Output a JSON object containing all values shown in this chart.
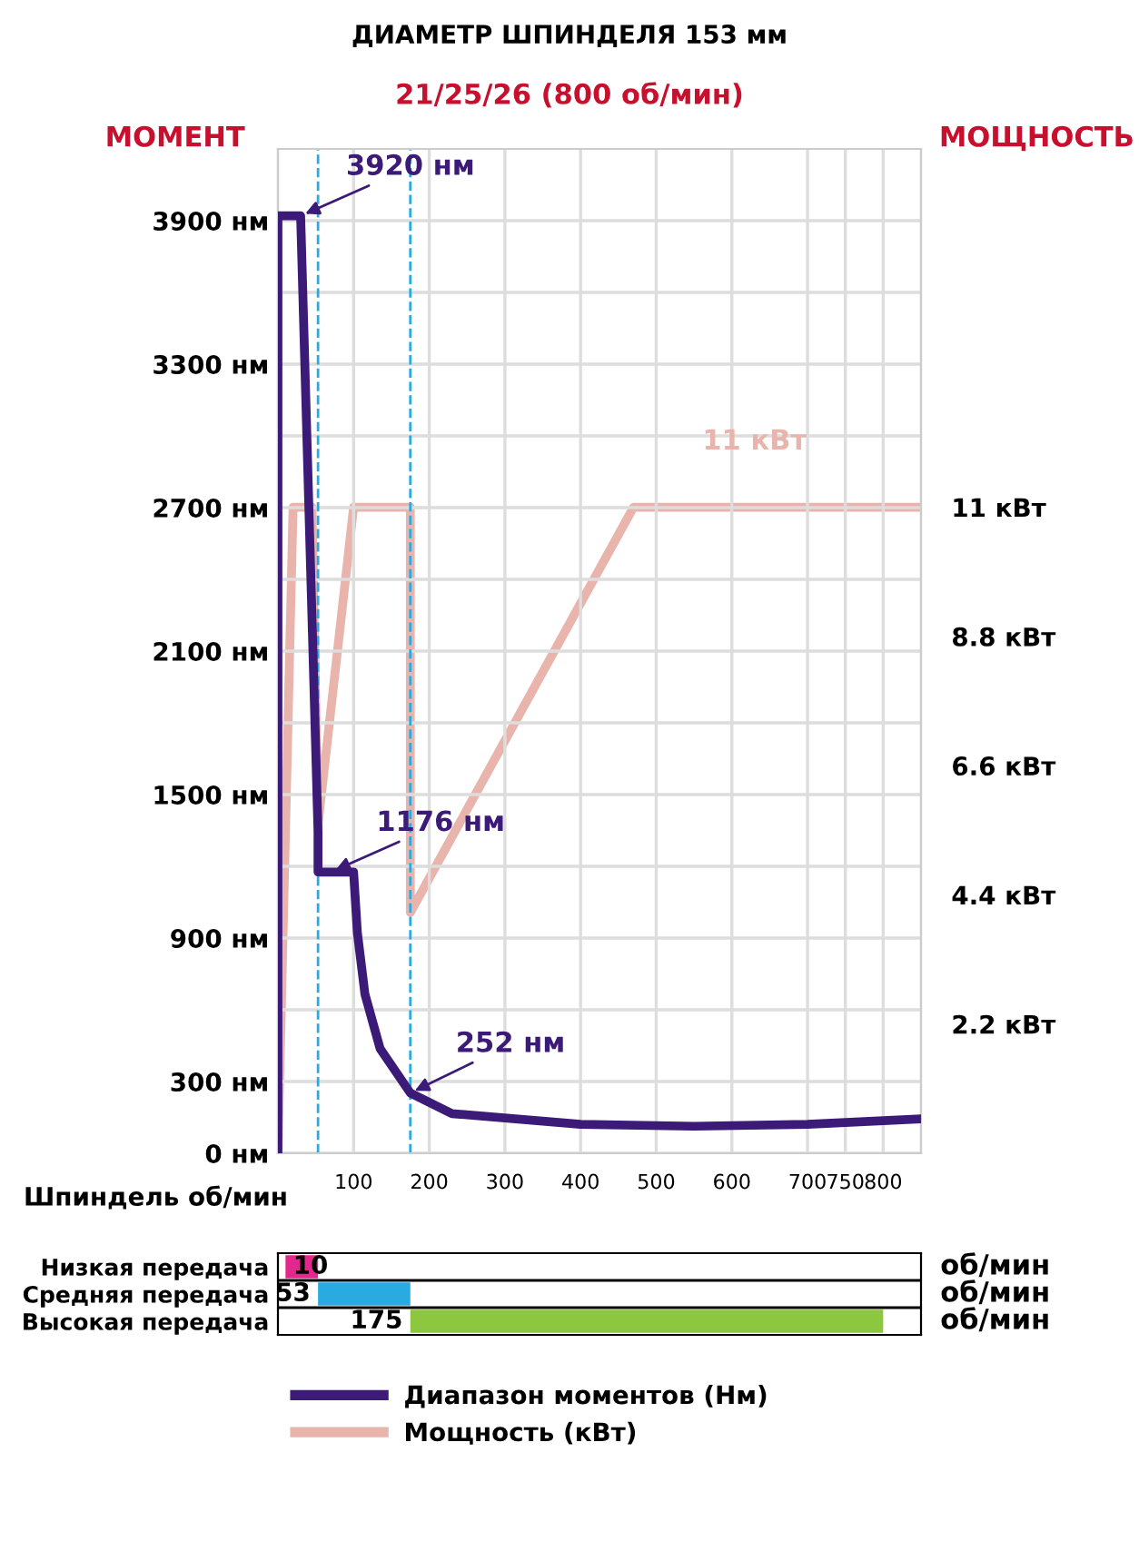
{
  "chart_data": [
    {
      "type": "line",
      "title": "ДИАМЕТР ШПИНДЕЛЯ 153 мм",
      "subtitle": "21/25/26 (800 об/мин)",
      "xlabel": "Шпиндель об/мин",
      "ylabel": "МОМЕНТ",
      "y2label": "МОЩНОСТЬ",
      "series": [
        {
          "name": "Диапазон моментов (Нм)",
          "color": "#3b1a78",
          "x": [
            0,
            0,
            30,
            53,
            53,
            100,
            105,
            115,
            135,
            175,
            230,
            400,
            550,
            700,
            850
          ],
          "values": [
            0,
            3920,
            3920,
            1345,
            1176,
            1176,
            922,
            665,
            438,
            252,
            166,
            121,
            113,
            121,
            144
          ]
        },
        {
          "name": "Мощность (кВт)",
          "color": "#e8b4ab",
          "axis": "y2",
          "x": [
            0,
            20,
            45,
            53,
            100,
            175,
            175,
            470,
            850
          ],
          "values": [
            0,
            11,
            11,
            5.6,
            11,
            11,
            4.1,
            11,
            11
          ]
        }
      ],
      "xlim": [
        0,
        850
      ],
      "xticks": [
        100,
        200,
        300,
        400,
        500,
        600,
        700,
        750,
        800
      ],
      "ylim": [
        0,
        4200
      ],
      "yticks": [
        {
          "value": 0,
          "label": "0 нм"
        },
        {
          "value": 300,
          "label": "300 нм"
        },
        {
          "value": 600,
          "label": null
        },
        {
          "value": 900,
          "label": "900 нм"
        },
        {
          "value": 1200,
          "label": null
        },
        {
          "value": 1500,
          "label": "1500 нм"
        },
        {
          "value": 1800,
          "label": null
        },
        {
          "value": 2100,
          "label": "2100 нм"
        },
        {
          "value": 2400,
          "label": null
        },
        {
          "value": 2700,
          "label": "2700 нм"
        },
        {
          "value": 3000,
          "label": null
        },
        {
          "value": 3300,
          "label": "3300 нм"
        },
        {
          "value": 3600,
          "label": null
        },
        {
          "value": 3900,
          "label": "3900 нм"
        }
      ],
      "y2lim": [
        0,
        17.1
      ],
      "y2ticks": [
        {
          "value": 2.2,
          "label": "2.2 кВт"
        },
        {
          "value": 4.4,
          "label": "4.4 кВт"
        },
        {
          "value": 6.6,
          "label": "6.6 кВт"
        },
        {
          "value": 8.8,
          "label": "8.8 кВт"
        },
        {
          "value": 11,
          "label": "11 кВт"
        }
      ],
      "ref_lines": [
        {
          "axis": "x",
          "value": 53,
          "label": null,
          "color": "#29abe2",
          "line_style": "dashed"
        },
        {
          "axis": "x",
          "value": 175,
          "label": null,
          "color": "#29abe2",
          "line_style": "dashed"
        }
      ],
      "annotations": [
        {
          "text": "3920 нм",
          "x": 30,
          "y": 3920
        },
        {
          "text": "1176 нм",
          "x": 70,
          "y": 1176
        },
        {
          "text": "252 нм",
          "x": 175,
          "y": 252
        },
        "11 кВт"
      ],
      "grid": true,
      "legend": "bottom",
      "marker": "none",
      "line_style": "solid"
    },
    {
      "type": "bar",
      "orientation": "horizontal",
      "categories": [
        "Низкая передача",
        "Средняя передача",
        "Высокая передача"
      ],
      "base": [
        10,
        53,
        175
      ],
      "values": [
        43,
        122,
        625
      ],
      "colors": [
        "#e2288c",
        "#29abe2",
        "#8dc63f"
      ],
      "xlim": [
        0,
        850
      ],
      "tick_labels": "y",
      "annotations": [
        {
          "text": "10",
          "x": 10,
          "y": "Низкая передача"
        },
        {
          "text": "53",
          "x": 53,
          "y": "Средняя передача"
        },
        {
          "text": "175",
          "x": 175,
          "y": "Высокая передача"
        },
        "об/мин",
        "об/мин",
        "об/мин"
      ]
    }
  ]
}
